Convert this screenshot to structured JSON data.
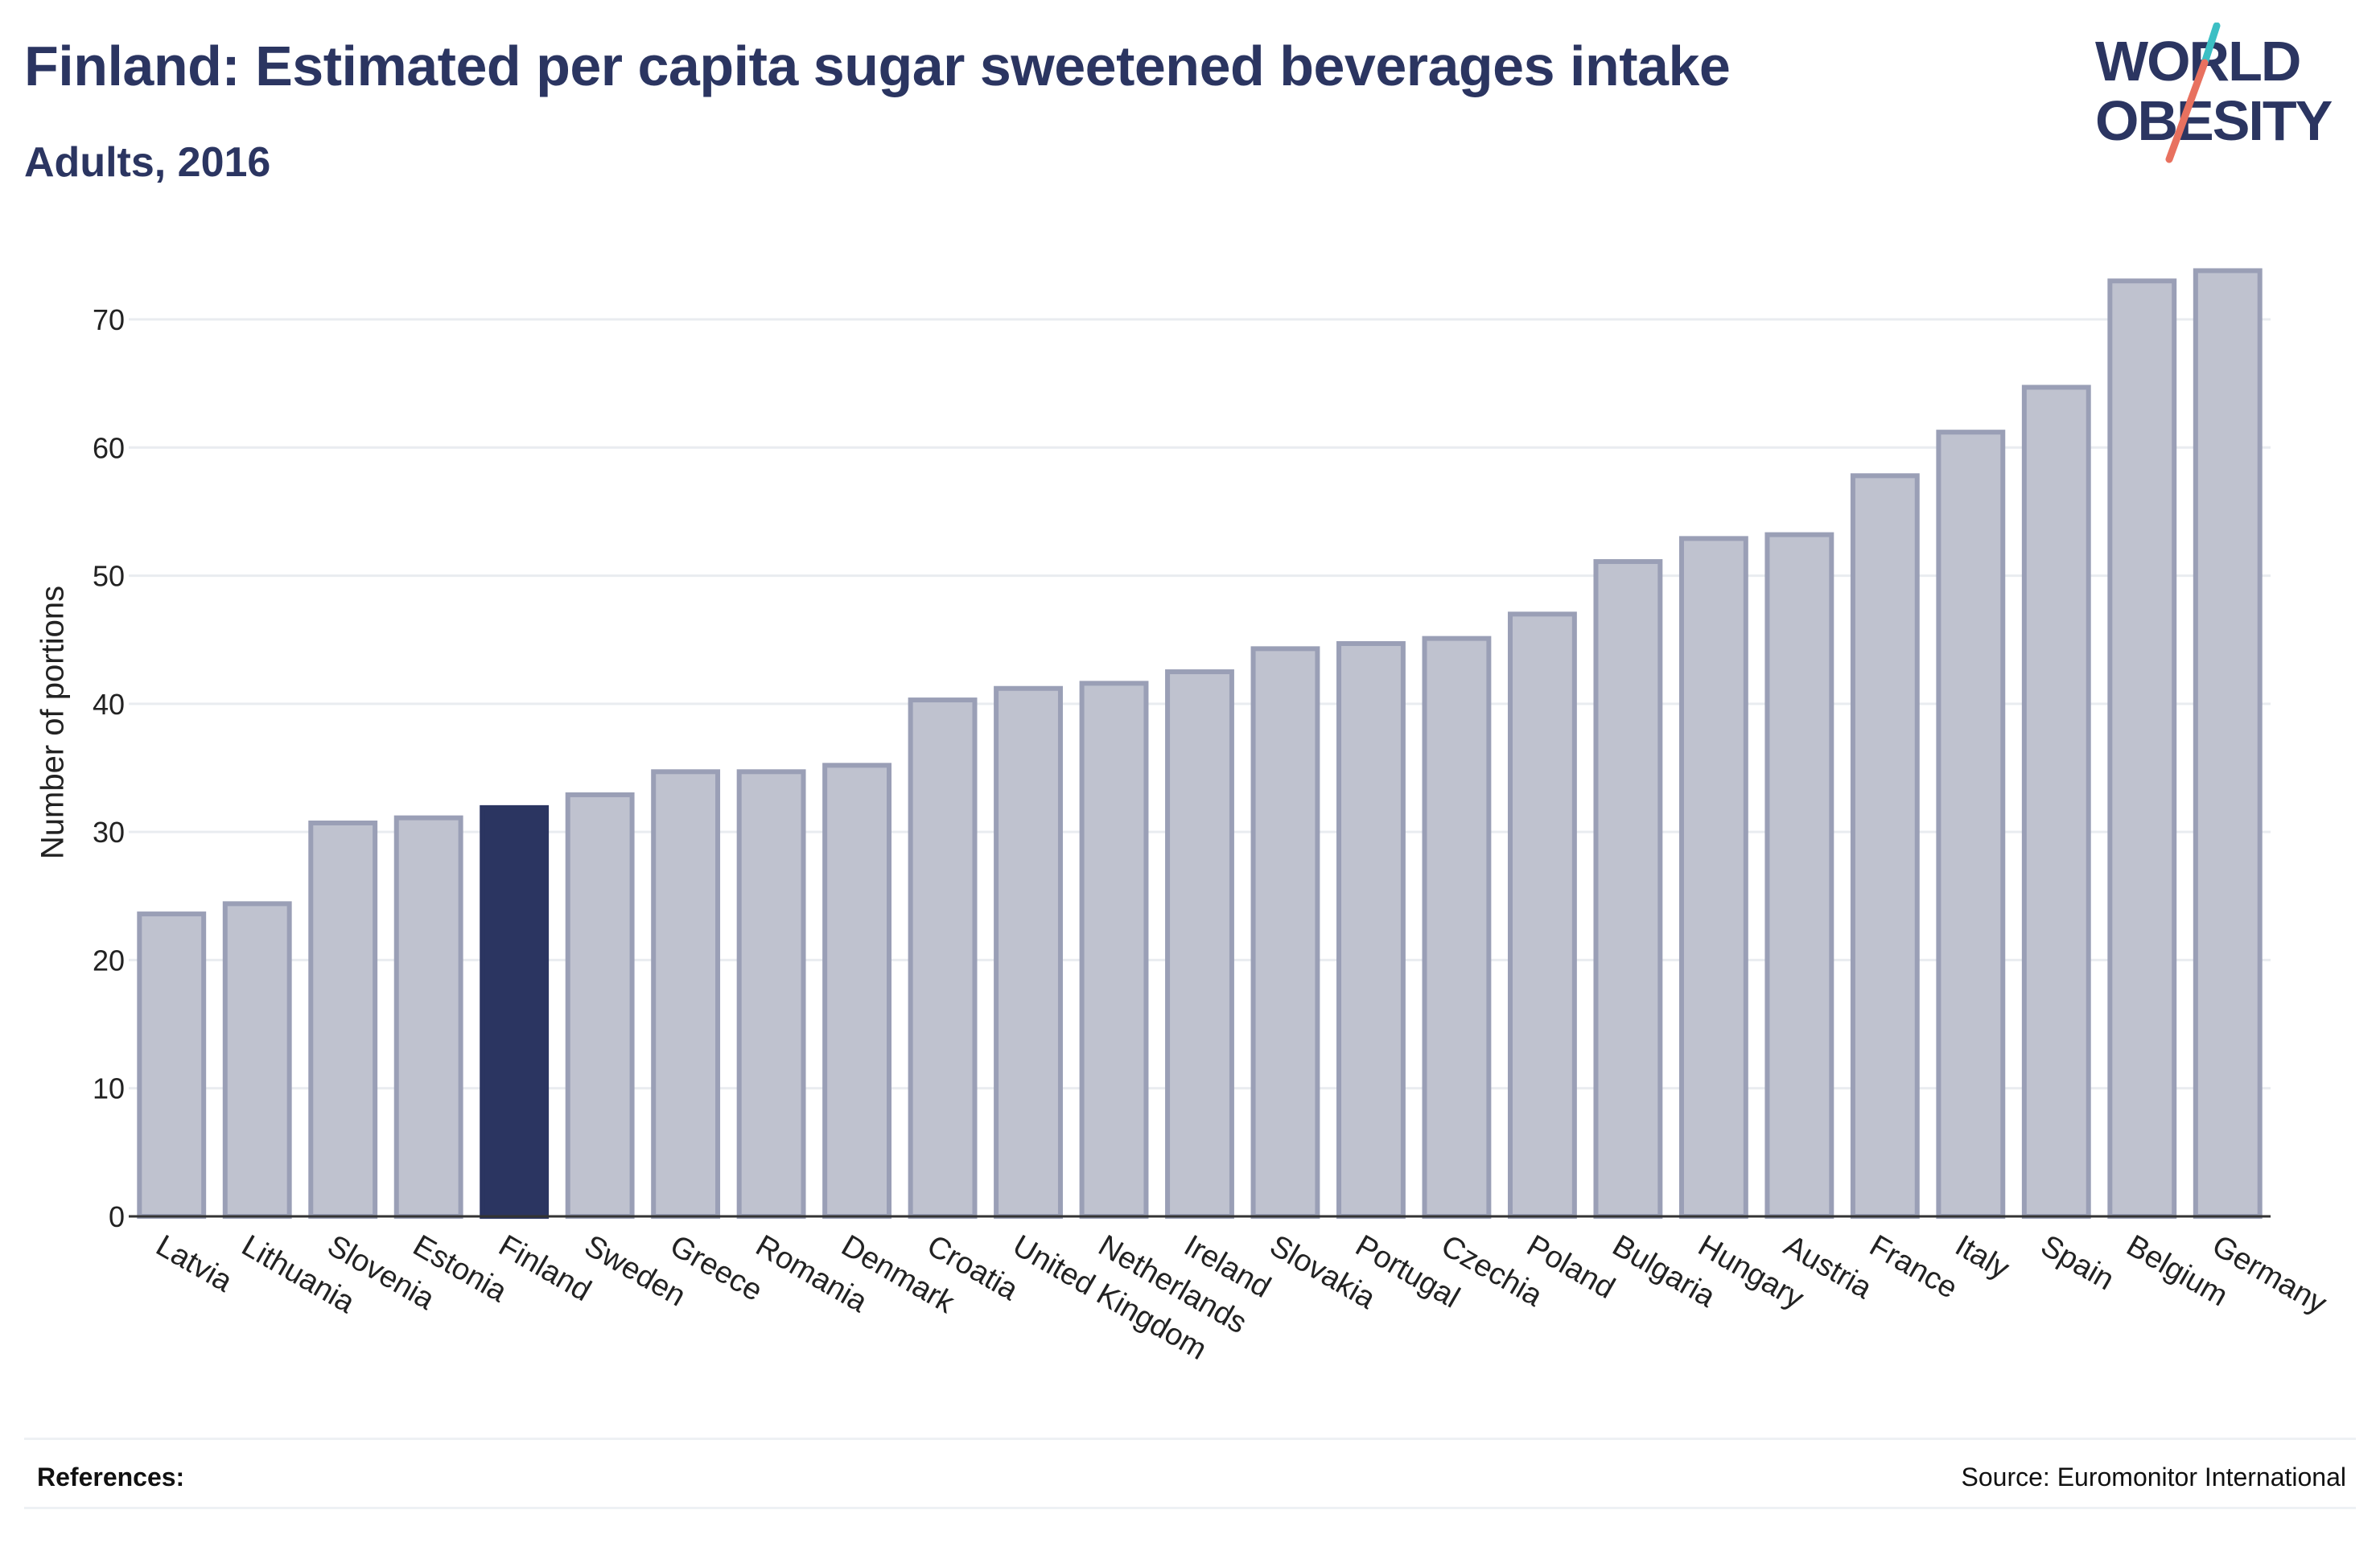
{
  "header": {
    "title": "Finland: Estimated per capita sugar sweetened beverages intake",
    "subtitle": "Adults, 2016"
  },
  "logo": {
    "line1": "WORLD",
    "line2": "OBESITY",
    "icon": "world-obesity-logo",
    "colors": {
      "text": "#2b3561",
      "slash_top": "#3cbfc4",
      "slash_bottom": "#e8715f"
    }
  },
  "footer": {
    "references_label": "References:",
    "source": "Source: Euromonitor International"
  },
  "colors": {
    "highlight": "#2b3561",
    "bar_fill": "#bfc2cf",
    "bar_stroke": "#9a9fb6",
    "grid": "#e9ecf0",
    "axis": "#333333"
  },
  "chart_data": {
    "type": "bar",
    "title": "Finland: Estimated per capita sugar sweetened beverages intake",
    "subtitle": "Adults, 2016",
    "xlabel": "",
    "ylabel": "Number of portions",
    "ylim": [
      0,
      76
    ],
    "yticks": [
      0,
      10,
      20,
      30,
      40,
      50,
      60,
      70
    ],
    "grid": true,
    "highlight": "Finland",
    "categories": [
      "Latvia",
      "Lithuania",
      "Slovenia",
      "Estonia",
      "Finland",
      "Sweden",
      "Greece",
      "Romania",
      "Denmark",
      "Croatia",
      "United Kingdom",
      "Netherlands",
      "Ireland",
      "Slovakia",
      "Portugal",
      "Czechia",
      "Poland",
      "Bulgaria",
      "Hungary",
      "Austria",
      "France",
      "Italy",
      "Spain",
      "Belgium",
      "Germany"
    ],
    "values": [
      23.6,
      24.4,
      30.7,
      31.1,
      31.9,
      32.9,
      34.7,
      34.7,
      35.2,
      40.3,
      41.2,
      41.6,
      42.5,
      44.3,
      44.7,
      45.1,
      47.0,
      51.1,
      52.9,
      53.2,
      57.8,
      61.2,
      64.7,
      73.0,
      73.8
    ]
  }
}
